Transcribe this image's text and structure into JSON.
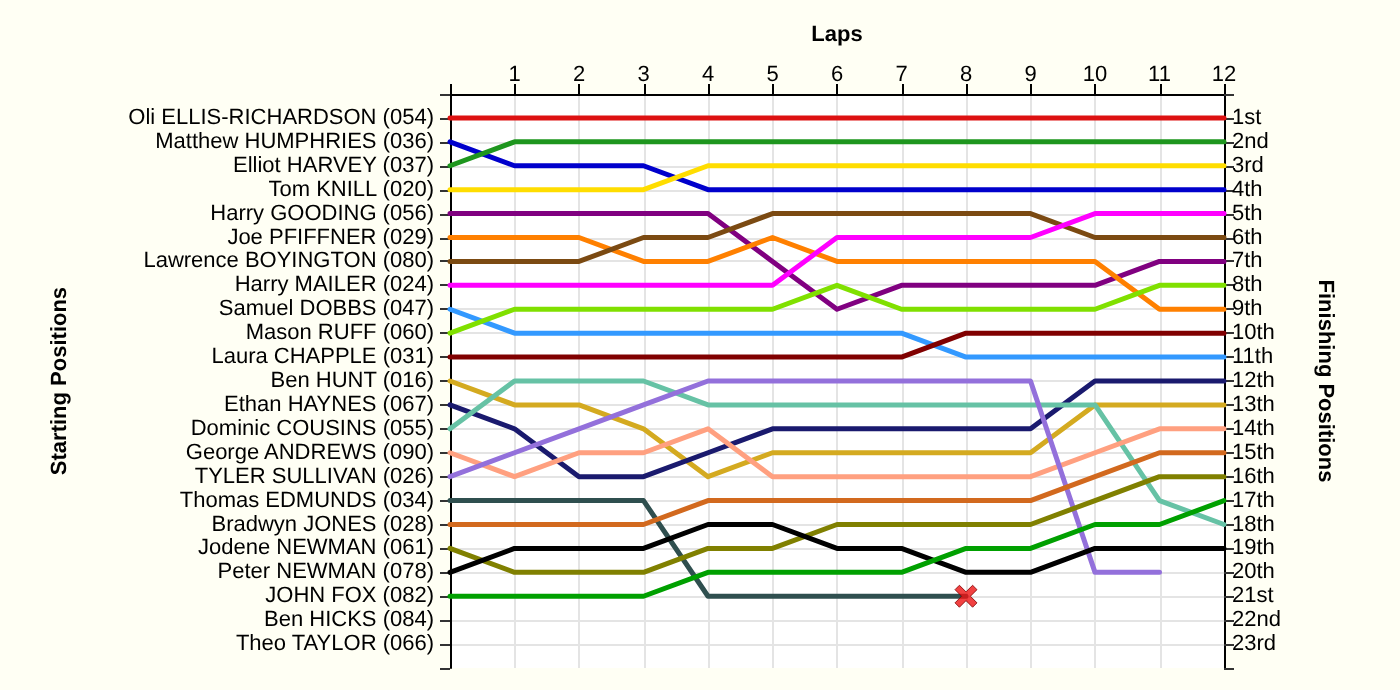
{
  "chart_data": {
    "type": "line",
    "xlabel": "Laps",
    "ylabel": "Finishing Positions",
    "annotations": [
      "Starting Positions",
      "Ben HICKS (084)",
      "Theo TAYLOR (066)"
    ],
    "x": [
      0,
      1,
      2,
      3,
      4,
      5,
      6,
      7,
      8,
      9,
      10,
      11,
      12
    ],
    "xlim": [
      0,
      12
    ],
    "xticks": [
      {
        "value": 0,
        "label": null
      },
      1,
      2,
      3,
      4,
      5,
      6,
      7,
      8,
      9,
      10,
      11,
      12
    ],
    "ylim": [
      24,
      0
    ],
    "yticks": [
      {
        "value": 0,
        "label": null
      },
      {
        "value": 1,
        "label": "1st"
      },
      {
        "value": 2,
        "label": "2nd"
      },
      {
        "value": 3,
        "label": "3rd"
      },
      {
        "value": 4,
        "label": "4th"
      },
      {
        "value": 5,
        "label": "5th"
      },
      {
        "value": 6,
        "label": "6th"
      },
      {
        "value": 7,
        "label": "7th"
      },
      {
        "value": 8,
        "label": "8th"
      },
      {
        "value": 9,
        "label": "9th"
      },
      {
        "value": 10,
        "label": "10th"
      },
      {
        "value": 11,
        "label": "11th"
      },
      {
        "value": 12,
        "label": "12th"
      },
      {
        "value": 13,
        "label": "13th"
      },
      {
        "value": 14,
        "label": "14th"
      },
      {
        "value": 15,
        "label": "15th"
      },
      {
        "value": 16,
        "label": "16th"
      },
      {
        "value": 17,
        "label": "17th"
      },
      {
        "value": 18,
        "label": "18th"
      },
      {
        "value": 19,
        "label": "19th"
      },
      {
        "value": 20,
        "label": "20th"
      },
      {
        "value": 21,
        "label": "21st"
      },
      {
        "value": 22,
        "label": "22nd"
      },
      {
        "value": 23,
        "label": "23rd"
      },
      {
        "value": 24,
        "label": null
      }
    ],
    "grid": true,
    "marker": "none",
    "line_style": "solid",
    "series": [
      {
        "name": "Oli ELLIS-RICHARDSON (054)",
        "color": "#dd1111",
        "values": [
          1,
          1,
          1,
          1,
          1,
          1,
          1,
          1,
          1,
          1,
          1,
          1,
          1
        ]
      },
      {
        "name": "Matthew HUMPHRIES (036)",
        "color": "#0000cc",
        "values": [
          2,
          3,
          3,
          3,
          4,
          4,
          4,
          4,
          4,
          4,
          4,
          4,
          4
        ]
      },
      {
        "name": "Elliot HARVEY (037)",
        "color": "#1e961e",
        "values": [
          3,
          2,
          2,
          2,
          2,
          2,
          2,
          2,
          2,
          2,
          2,
          2,
          2
        ]
      },
      {
        "name": "Tom KNILL (020)",
        "color": "#ffdd00",
        "values": [
          4,
          4,
          4,
          4,
          3,
          3,
          3,
          3,
          3,
          3,
          3,
          3,
          3
        ]
      },
      {
        "name": "Harry GOODING (056)",
        "color": "#800080",
        "values": [
          5,
          5,
          5,
          5,
          5,
          7,
          9,
          8,
          8,
          8,
          8,
          7,
          7
        ]
      },
      {
        "name": "Joe PFIFFNER (029)",
        "color": "#ff8000",
        "values": [
          6,
          6,
          6,
          7,
          7,
          6,
          7,
          7,
          7,
          7,
          7,
          9,
          9
        ]
      },
      {
        "name": "Lawrence BOYINGTON (080)",
        "color": "#7b4a12",
        "values": [
          7,
          7,
          7,
          6,
          6,
          5,
          5,
          5,
          5,
          5,
          6,
          6,
          6
        ]
      },
      {
        "name": "Harry MAILER (024)",
        "color": "#ff00ff",
        "values": [
          8,
          8,
          8,
          8,
          8,
          8,
          6,
          6,
          6,
          6,
          5,
          5,
          5
        ]
      },
      {
        "name": "Samuel DOBBS (047)",
        "color": "#3399ff",
        "values": [
          9,
          10,
          10,
          10,
          10,
          10,
          10,
          10,
          11,
          11,
          11,
          11,
          11
        ]
      },
      {
        "name": "Mason RUFF (060)",
        "color": "#80e000",
        "values": [
          10,
          9,
          9,
          9,
          9,
          9,
          8,
          9,
          9,
          9,
          9,
          8,
          8
        ]
      },
      {
        "name": "Laura CHAPPLE (031)",
        "color": "#800000",
        "values": [
          11,
          11,
          11,
          11,
          11,
          11,
          11,
          11,
          10,
          10,
          10,
          10,
          10
        ]
      },
      {
        "name": "Ben HUNT (016)",
        "color": "#d4aa20",
        "values": [
          12,
          13,
          13,
          14,
          16,
          15,
          15,
          15,
          15,
          15,
          13,
          13,
          13
        ]
      },
      {
        "name": "Ethan HAYNES (067)",
        "color": "#1a1a6e",
        "values": [
          13,
          14,
          16,
          16,
          15,
          14,
          14,
          14,
          14,
          14,
          12,
          12,
          12
        ]
      },
      {
        "name": "Dominic COUSINS (055)",
        "color": "#66c2a5",
        "values": [
          14,
          12,
          12,
          12,
          13,
          13,
          13,
          13,
          13,
          13,
          13,
          17,
          18
        ]
      },
      {
        "name": "George ANDREWS (090)",
        "color": "#ffa080",
        "values": [
          15,
          16,
          15,
          15,
          14,
          16,
          16,
          16,
          16,
          16,
          15,
          14,
          14
        ]
      },
      {
        "name": "TYLER SULLIVAN (026)",
        "color": "#9370db",
        "values": [
          16,
          15,
          14,
          13,
          12,
          12,
          12,
          12,
          12,
          12,
          20,
          20,
          null
        ]
      },
      {
        "name": "Thomas EDMUNDS (034)",
        "color": "#2f4f4f",
        "values": [
          17,
          17,
          17,
          17,
          21,
          21,
          21,
          21,
          21,
          null,
          null,
          null,
          null
        ]
      },
      {
        "name": "Bradwyn JONES (028)",
        "color": "#d2691e",
        "values": [
          18,
          18,
          18,
          18,
          17,
          17,
          17,
          17,
          17,
          17,
          16,
          15,
          15
        ]
      },
      {
        "name": "Jodene NEWMAN (061)",
        "color": "#808000",
        "values": [
          19,
          20,
          20,
          20,
          19,
          19,
          18,
          18,
          18,
          18,
          17,
          16,
          16
        ]
      },
      {
        "name": "Peter NEWMAN (078)",
        "color": "#000000",
        "values": [
          20,
          19,
          19,
          19,
          18,
          18,
          19,
          19,
          20,
          20,
          19,
          19,
          19
        ]
      },
      {
        "name": "JOHN FOX (082)",
        "color": "#00a000",
        "values": [
          21,
          21,
          21,
          21,
          20,
          20,
          20,
          20,
          19,
          19,
          18,
          18,
          17
        ]
      },
      {
        "type": "scatter",
        "color": "#ee1111",
        "marker": "cross",
        "x": [
          8
        ],
        "values": [
          21
        ]
      }
    ]
  }
}
